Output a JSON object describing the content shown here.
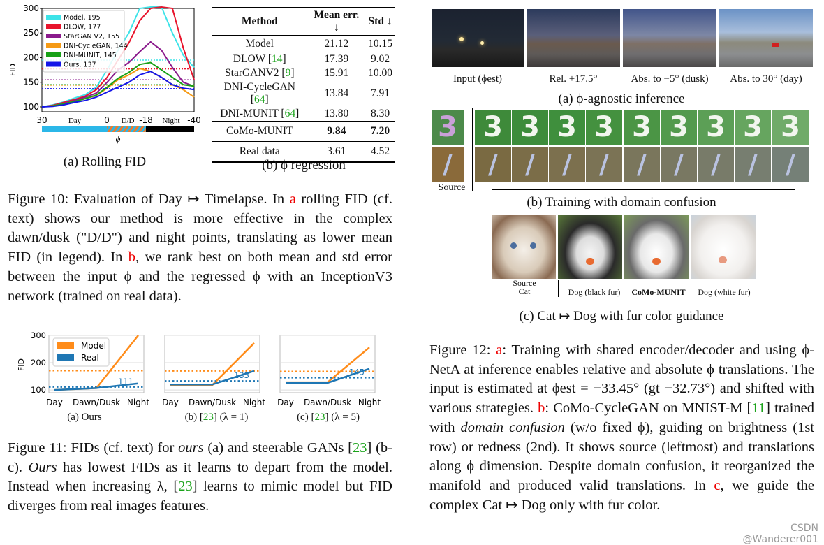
{
  "fig10": {
    "rolling": {
      "y_label": "FID",
      "y_ticks": [
        "300",
        "250",
        "200",
        "150",
        "100"
      ],
      "x_ticks": [
        "30",
        "0",
        "-18",
        "-40"
      ],
      "x_segments": [
        "Day",
        "D/D",
        "Night"
      ],
      "x_axis_symbol": "ϕ",
      "legend": [
        {
          "name": "Model, 195",
          "color": "#3de3e8"
        },
        {
          "name": "DLOW, 177",
          "color": "#e8142c"
        },
        {
          "name": "StarGAN V2, 155",
          "color": "#8a1a8c"
        },
        {
          "name": "DNI-CycleGAN, 144",
          "color": "#f59a15"
        },
        {
          "name": "DNI-MUNIT, 145",
          "color": "#17a117"
        },
        {
          "name": "Ours, 137",
          "color": "#1515e8"
        }
      ],
      "caption": "(a) Rolling FID"
    },
    "table": {
      "headers": [
        "Method",
        "Mean err. ↓",
        "Std ↓"
      ],
      "rows": [
        {
          "method": "Model",
          "mean": "21.12",
          "std": "10.15",
          "ref": ""
        },
        {
          "method": "DLOW",
          "mean": "17.39",
          "std": "9.02",
          "ref": "14"
        },
        {
          "method": "StarGANV2",
          "mean": "15.91",
          "std": "10.00",
          "ref": "9"
        },
        {
          "method": "DNI-CycleGAN",
          "mean": "13.84",
          "std": "7.91",
          "ref": "64"
        },
        {
          "method": "DNI-MUNIT",
          "mean": "13.80",
          "std": "8.30",
          "ref": "64"
        }
      ],
      "ours": {
        "method": "CoMo-MUNIT",
        "mean": "9.84",
        "std": "7.20"
      },
      "real": {
        "method": "Real data",
        "mean": "3.61",
        "std": "4.52"
      },
      "caption": "(b) ϕ regression"
    },
    "text": {
      "t1": "Figure 10: Evaluation of Day ↦ Timelapse. In ",
      "a": "a",
      "t2": " rolling FID (cf. text) shows our method is more effective in the complex dawn/dusk (\"D/D\") and night points, translating as lower mean FID (in legend). In ",
      "b": "b",
      "t3": ", we rank best on both mean and std error between the input ϕ and the regressed ϕ with an InceptionV3 network (trained on real data)."
    }
  },
  "fig11": {
    "x_ticks": [
      "Day",
      "Dawn/Dusk",
      "Night"
    ],
    "y_ticks": [
      "300",
      "200",
      "100"
    ],
    "y_label": "FID",
    "legend": [
      {
        "name": "Model",
        "color": "#ff8c1a"
      },
      {
        "name": "Real",
        "color": "#1f77b4"
      }
    ],
    "panels": [
      {
        "caption": "(a) Ours",
        "ref": "",
        "lambda": "",
        "value_label": "111",
        "series": {
          "Model": [
            100,
            107,
            300
          ],
          "Real": [
            100,
            107,
            124
          ]
        },
        "dotted": {
          "Model": 171,
          "Real": 111
        }
      },
      {
        "caption_pre": "(b) [",
        "ref": "23",
        "caption_post": "] (λ = 1)",
        "value_label": "133",
        "series": {
          "Model": [
            118,
            118,
            272
          ],
          "Real": [
            120,
            120,
            170
          ]
        },
        "dotted": {
          "Model": 170,
          "Real": 133
        }
      },
      {
        "caption_pre": "(c) [",
        "ref": "23",
        "caption_post": "] (λ = 5)",
        "value_label": "145",
        "series": {
          "Model": [
            128,
            128,
            256
          ],
          "Real": [
            126,
            126,
            178
          ]
        },
        "dotted": {
          "Model": 168,
          "Real": 145
        }
      }
    ],
    "text": {
      "t1": "Figure 11: FIDs (cf. text) for ",
      "ours1": "ours",
      "t2": " (a) and steerable GANs [",
      "ref": "23",
      "t3": "] (b-c). ",
      "ours2": "Ours",
      "t4": " has lowest FIDs as it learns to depart from the model. Instead when increasing λ, [",
      "ref2": "23",
      "t5": "] learns to mimic model but FID diverges from real images features."
    }
  },
  "fig12": {
    "a_labels": [
      "Input (ϕest)",
      "Rel. +17.5°",
      "Abs. to −5° (dusk)",
      "Abs. to 30° (day)"
    ],
    "a_caption": "(a) ϕ-agnostic inference",
    "b_source": "Source",
    "b_caption": "(b) Training with domain confusion",
    "c_source": "Source",
    "c_source2": "Cat",
    "c_labels": [
      "Dog (black fur)",
      "CoMo-MUNIT",
      "Dog (white fur)"
    ],
    "c_caption": "(c) Cat ↦ Dog with fur color guidance",
    "text": {
      "t1": "Figure 12: ",
      "a": "a",
      "t2": ": Training with shared encoder/decoder and using ϕ-NetA at inference enables relative and absolute ϕ translations. The input is estimated at ϕest = −33.45° (gt −32.73°) and shifted with various strategies. ",
      "b": "b",
      "t3": ": CoMo-CycleGAN on MNIST-M [",
      "ref": "11",
      "t4": "] trained with ",
      "dc": "domain confusion",
      "t5": " (w/o fixed ϕ), guiding on brightness (1st row) or redness (2nd). It shows source (leftmost) and translations along ϕ dimension. Despite domain confusion, it reorganized the manifold and produced valid translations. In ",
      "c": "c",
      "t6": ", we guide the complex Cat ↦ Dog only with fur color."
    },
    "watermark": "CSDN @Wanderer001"
  }
}
